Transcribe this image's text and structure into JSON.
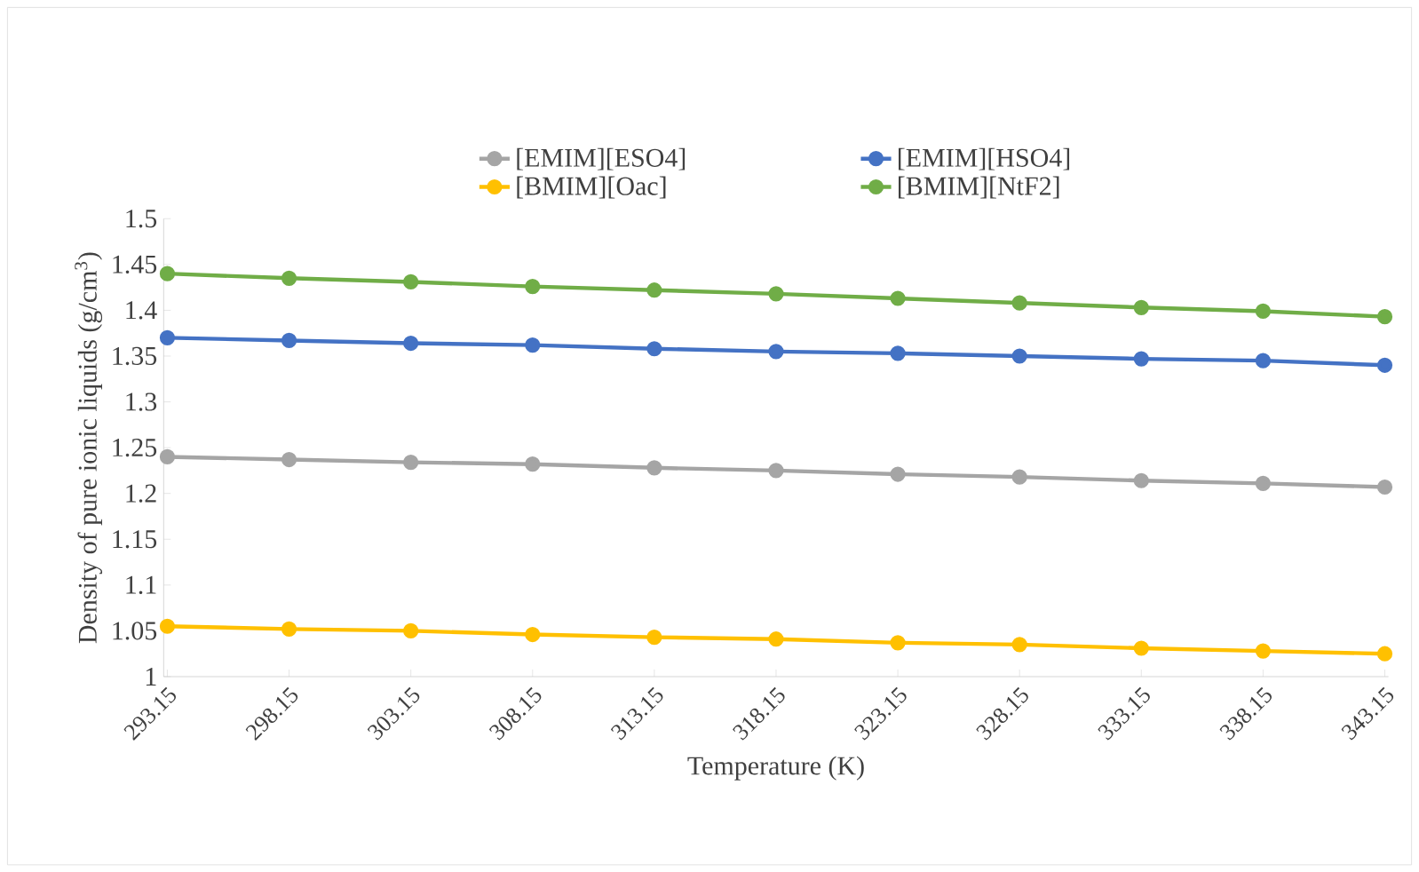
{
  "chart_data": {
    "type": "line",
    "xlabel": "Temperature (K)",
    "ylabel": "Density of  pure ionic liquids (g/cm$^{3}$)",
    "categories": [
      "293.15",
      "298.15",
      "303.15",
      "308.15",
      "313.15",
      "318.15",
      "323.15",
      "328.15",
      "333.15",
      "338.15",
      "343.15"
    ],
    "series": [
      {
        "name": "[EMIM][ESO4]",
        "color": "#a5a5a5",
        "values": [
          1.24,
          1.237,
          1.234,
          1.232,
          1.228,
          1.225,
          1.221,
          1.218,
          1.214,
          1.211,
          1.207
        ]
      },
      {
        "name": "[BMIM][Oac]",
        "color": "#ffc000",
        "values": [
          1.055,
          1.052,
          1.05,
          1.046,
          1.043,
          1.041,
          1.037,
          1.035,
          1.031,
          1.028,
          1.025
        ]
      },
      {
        "name": "[EMIM][HSO4]",
        "color": "#4472c4",
        "values": [
          1.37,
          1.367,
          1.364,
          1.362,
          1.358,
          1.355,
          1.353,
          1.35,
          1.347,
          1.345,
          1.34
        ]
      },
      {
        "name": "[BMIM][NtF2]",
        "color": "#70ad47",
        "values": [
          1.44,
          1.435,
          1.431,
          1.426,
          1.422,
          1.418,
          1.413,
          1.408,
          1.403,
          1.399,
          1.393
        ]
      }
    ],
    "ylim": [
      1,
      1.5
    ],
    "yticks": [
      1,
      1.05,
      1.1,
      1.15,
      1.2,
      1.25,
      1.3,
      1.35,
      1.4,
      1.45,
      1.5
    ],
    "grid": false,
    "legend": "top",
    "marker": "circle",
    "line_style": "solid"
  }
}
